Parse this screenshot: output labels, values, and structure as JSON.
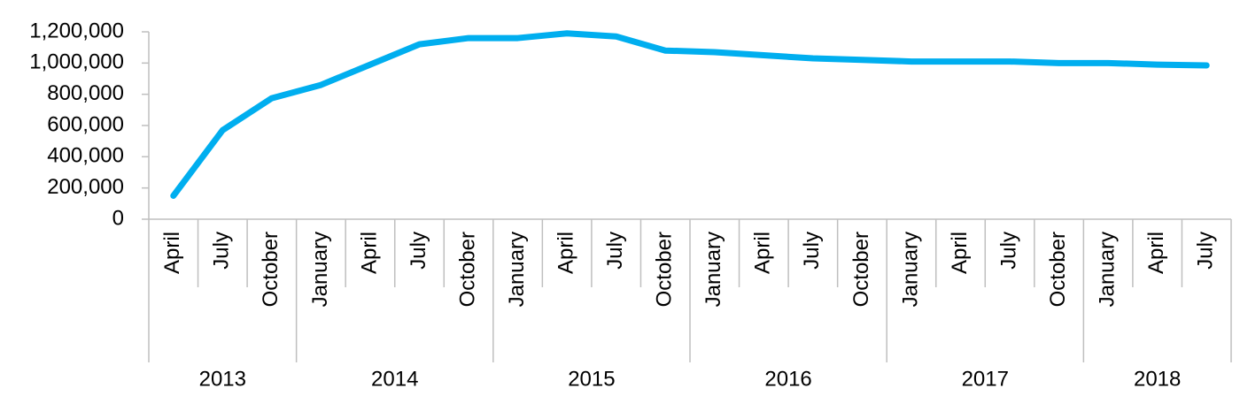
{
  "chart_data": {
    "type": "line",
    "categories": [
      "April",
      "July",
      "October",
      "January",
      "April",
      "July",
      "October",
      "January",
      "April",
      "July",
      "October",
      "January",
      "April",
      "July",
      "October",
      "January",
      "April",
      "July",
      "October",
      "January",
      "April",
      "July"
    ],
    "groups": [
      {
        "name": "2013",
        "size": 3
      },
      {
        "name": "2014",
        "size": 4
      },
      {
        "name": "2015",
        "size": 4
      },
      {
        "name": "2016",
        "size": 4
      },
      {
        "name": "2017",
        "size": 4
      },
      {
        "name": "2018",
        "size": 3
      }
    ],
    "series": [
      {
        "color": "#00aeef",
        "values": [
          150000,
          570000,
          775000,
          860000,
          990000,
          1120000,
          1160000,
          1160000,
          1190000,
          1170000,
          1080000,
          1070000,
          1050000,
          1030000,
          1020000,
          1010000,
          1010000,
          1010000,
          1000000,
          1000000,
          990000,
          985000
        ]
      }
    ],
    "ylim": [
      0,
      1200000
    ],
    "yticks": [
      0,
      {
        "value": 200000,
        "label": "200,000"
      },
      {
        "value": 400000,
        "label": "400,000"
      },
      {
        "value": 600000,
        "label": "600,000"
      },
      {
        "value": 800000,
        "label": "800,000"
      },
      {
        "value": 1000000,
        "label": "1,000,000"
      },
      {
        "value": 1200000,
        "label": "1,200,000"
      }
    ],
    "grid": false
  }
}
